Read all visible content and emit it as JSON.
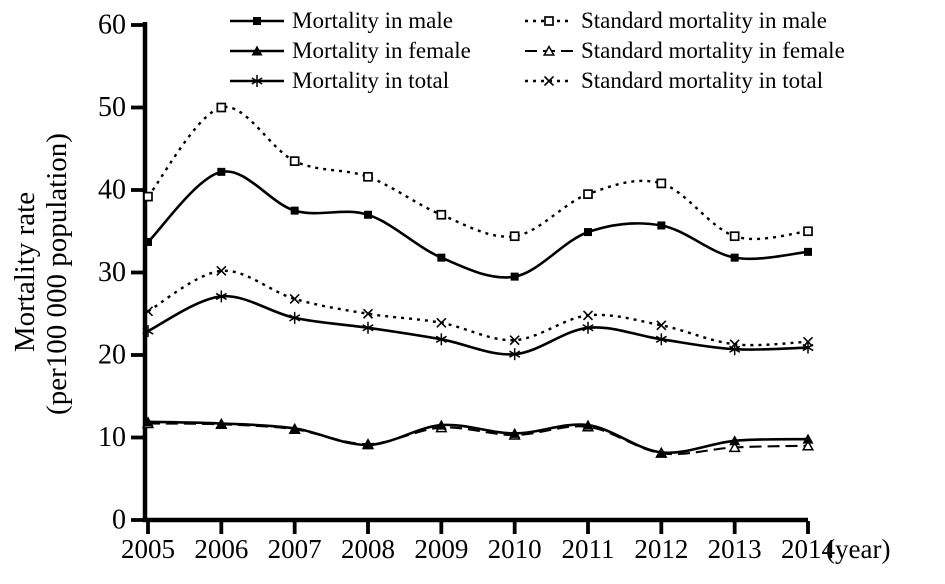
{
  "figure": {
    "background_color": "#ffffff",
    "ink_color": "#000000"
  },
  "chart_data": {
    "type": "line",
    "title": "",
    "xlabel": "(year)",
    "ylabel_line1": "Mortality rate",
    "ylabel_line2": "(per100 000 population)",
    "x_categories": [
      "2005",
      "2006",
      "2007",
      "2008",
      "2009",
      "2010",
      "2011",
      "2012",
      "2013",
      "2014"
    ],
    "yticks": [
      0,
      10,
      20,
      30,
      40,
      50,
      60
    ],
    "ylim": [
      0,
      60
    ],
    "grid": false,
    "legend_position": "top-two-columns-inside",
    "series": [
      {
        "name": "Mortality in male",
        "marker": "filled-square",
        "line": "solid",
        "values": [
          33.7,
          42.2,
          37.5,
          37.0,
          31.8,
          29.5,
          34.9,
          35.7,
          31.8,
          32.5
        ]
      },
      {
        "name": "Mortality in female",
        "marker": "filled-triangle",
        "line": "solid",
        "values": [
          11.9,
          11.7,
          11.1,
          9.1,
          11.5,
          10.5,
          11.5,
          8.2,
          9.6,
          9.8
        ]
      },
      {
        "name": "Mortality in total",
        "marker": "asterisk",
        "line": "solid",
        "values": [
          22.9,
          27.1,
          24.5,
          23.3,
          21.9,
          20.1,
          23.3,
          21.9,
          20.7,
          20.9
        ]
      },
      {
        "name": "Standard mortality in male",
        "marker": "open-square",
        "line": "dotted",
        "values": [
          39.2,
          50.0,
          43.5,
          41.6,
          37.0,
          34.4,
          39.5,
          40.8,
          34.4,
          35.0
        ]
      },
      {
        "name": "Standard mortality in female",
        "marker": "open-triangle",
        "line": "dashed",
        "values": [
          11.7,
          11.6,
          11.0,
          9.2,
          11.2,
          10.3,
          11.3,
          8.1,
          8.8,
          9.0
        ]
      },
      {
        "name": "Standard mortality in total",
        "marker": "x-cross",
        "line": "dotted",
        "values": [
          25.3,
          30.2,
          26.8,
          25.0,
          23.9,
          21.8,
          24.8,
          23.6,
          21.3,
          21.6
        ]
      }
    ]
  }
}
